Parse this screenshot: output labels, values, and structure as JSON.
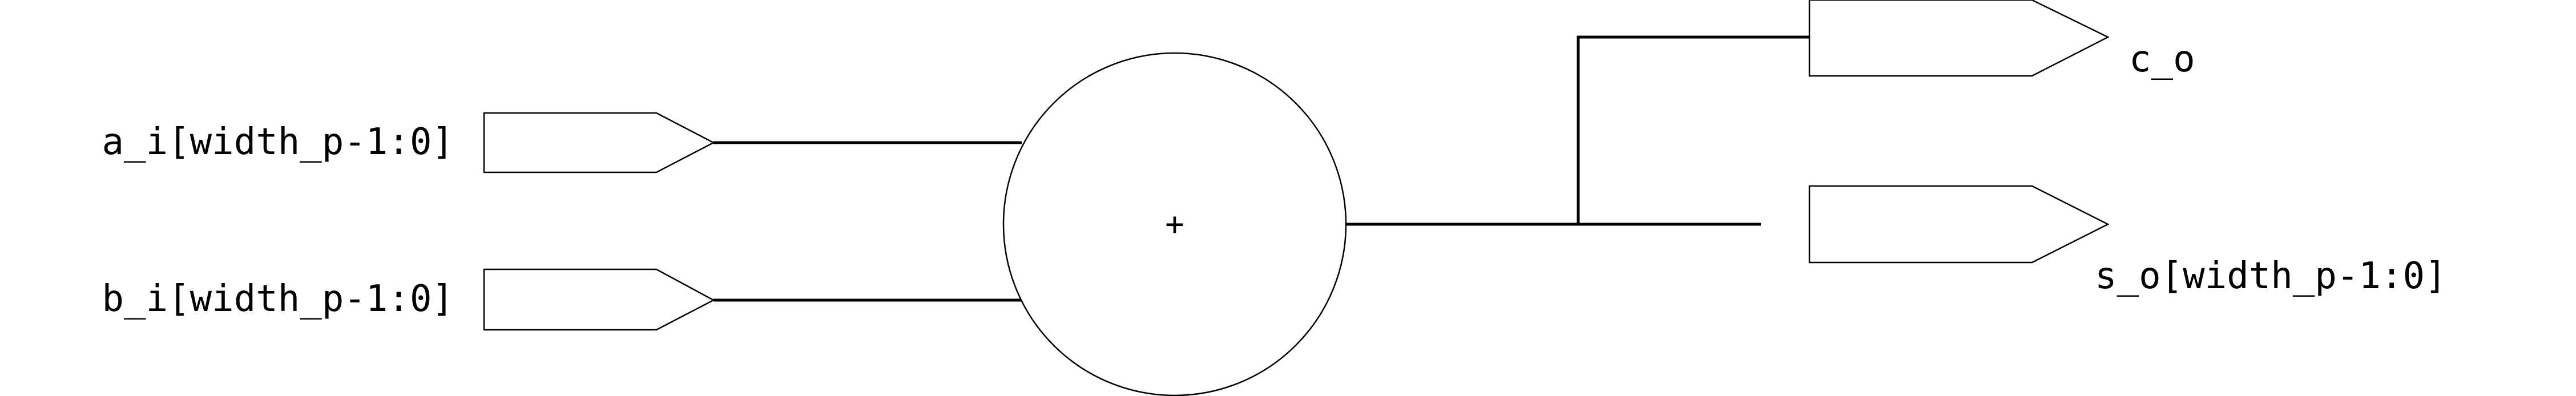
{
  "diagram": {
    "inputs": [
      {
        "label": "a_i[width_p-1:0]"
      },
      {
        "label": "b_i[width_p-1:0]"
      }
    ],
    "operator": "+",
    "outputs": [
      {
        "label": "c_o"
      },
      {
        "label": "s_o[width_p-1:0]"
      }
    ]
  }
}
